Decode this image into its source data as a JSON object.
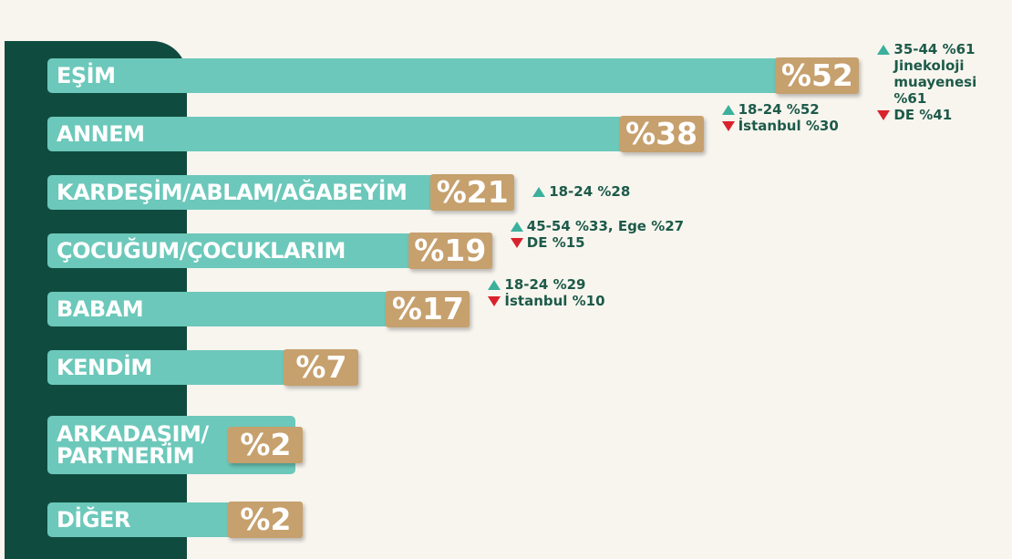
{
  "chart_data": {
    "type": "bar",
    "orientation": "horizontal",
    "categories": [
      "EŞİM",
      "ANNEM",
      "KARDEŞİM/ABLAM/AĞABEYİM",
      "ÇOCUĞUM/ÇOCUKLARIM",
      "BABAM",
      "KENDİM",
      "ARKADAŞIM/\nPARTNERİM",
      "DİĞER"
    ],
    "values": [
      52,
      38,
      21,
      19,
      17,
      7,
      2,
      2
    ],
    "value_labels": [
      "%52",
      "%38",
      "%21",
      "%19",
      "%17",
      "%7",
      "%2",
      "%2"
    ],
    "color": "#6cc8ba",
    "label_color": "#c6a06d",
    "annotations": [
      [
        {
          "direction": "up",
          "text": "35-44 %61\nJinekoloji\nmuayenesi %61"
        },
        {
          "direction": "down",
          "text": "DE %41"
        }
      ],
      [
        {
          "direction": "up",
          "text": "18-24 %52"
        },
        {
          "direction": "down",
          "text": "İstanbul %30"
        }
      ],
      [
        {
          "direction": "up",
          "text": "18-24 %28"
        }
      ],
      [
        {
          "direction": "up",
          "text": "45-54 %33, Ege %27"
        },
        {
          "direction": "down",
          "text": "DE %15"
        }
      ],
      [
        {
          "direction": "up",
          "text": "18-24 %29"
        },
        {
          "direction": "down",
          "text": "İstanbul %10"
        }
      ],
      [],
      [],
      []
    ]
  }
}
